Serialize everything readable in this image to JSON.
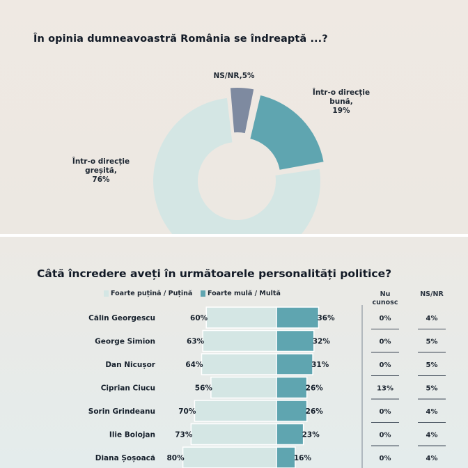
{
  "top_panel": {
    "title": "În opinia dumneavoastră România se îndreaptă ...?"
  },
  "bottom_panel": {
    "title": "Câtă încredere aveți în următoarele personalități politice?",
    "legend_low": "Foarte puțină / Puțină",
    "legend_high": "Foarte mulă / Multă",
    "col_nu_cunosc": "Nu cunosc",
    "col_nsnr": "NS/NR"
  },
  "colors": {
    "light": "#d4e6e4",
    "dark": "#5fa5b0",
    "gray": "#7e8aa0"
  },
  "chart_data": [
    {
      "type": "pie",
      "title": "În opinia dumneavoastră România se îndreaptă ...?",
      "slices": [
        {
          "name": "NS/NR",
          "value": 5,
          "label": "NS/NR,5%",
          "color": "#7e8aa0"
        },
        {
          "name": "Într-o direcție bună",
          "value": 19,
          "label_lines": [
            "Într-o direcție",
            "bună,",
            "19%"
          ],
          "color": "#5fa5b0"
        },
        {
          "name": "Într-o direcție greșită",
          "value": 76,
          "label_lines": [
            "Într-o direcție",
            "greșită,",
            "76%"
          ],
          "color": "#d4e6e4"
        }
      ]
    },
    {
      "type": "bar",
      "orientation": "horizontal-diverging",
      "title": "Câtă încredere aveți în următoarele personalități politice?",
      "categories": [
        "Călin Georgescu",
        "George Simion",
        "Dan Nicușor",
        "Ciprian Ciucu",
        "Sorin Grindeanu",
        "Ilie Bolojan",
        "Diana Șoșoacă"
      ],
      "series": [
        {
          "name": "Foarte puțină / Puțină",
          "values": [
            60,
            63,
            64,
            56,
            70,
            73,
            80
          ],
          "labels": [
            "60%",
            "63%",
            "64%",
            "56%",
            "70%",
            "73%",
            "80%"
          ]
        },
        {
          "name": "Foarte mulă / Multă",
          "values": [
            36,
            32,
            31,
            26,
            26,
            23,
            16
          ],
          "labels": [
            "36%",
            "32%",
            "31%",
            "26%",
            "26%",
            "23%",
            "16%"
          ]
        }
      ],
      "table_columns": [
        {
          "name": "Nu cunosc",
          "values": [
            "0%",
            "0%",
            "0%",
            "13%",
            "0%",
            "0%",
            "0%"
          ]
        },
        {
          "name": "NS/NR",
          "values": [
            "4%",
            "5%",
            "5%",
            "5%",
            "4%",
            "4%",
            "4%"
          ]
        }
      ]
    }
  ]
}
